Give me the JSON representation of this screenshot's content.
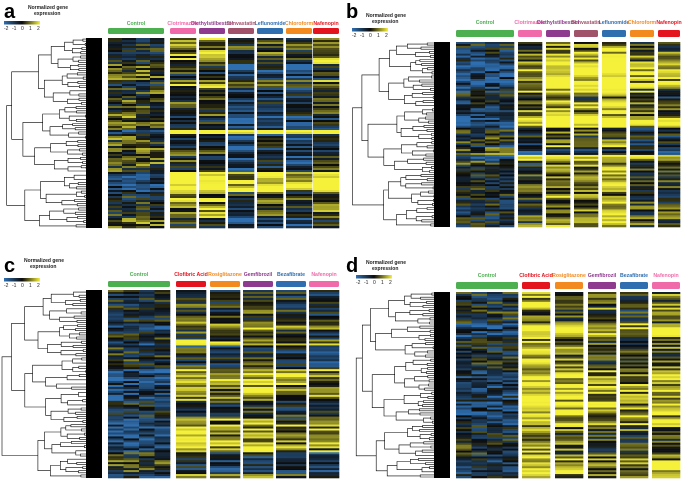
{
  "figure": {
    "panels": [
      {
        "letter": "a",
        "scale": {
          "title_line1": "Normalized gene",
          "title_line2": "expression",
          "ticks": [
            "-2",
            "-1",
            "0",
            "1",
            "2"
          ]
        },
        "groups": [
          {
            "label": "Control",
            "color": "#4caf50",
            "columns": 4
          },
          {
            "label": "Clotrimazole",
            "color": "#f06aa9",
            "columns": 1
          },
          {
            "label": "Diethylstilbestrol",
            "color": "#8e3a8e",
            "columns": 1
          },
          {
            "label": "Simvastatin",
            "color": "#a0526a",
            "columns": 1
          },
          {
            "label": "Leflunomide",
            "color": "#2f6fb0",
            "columns": 1
          },
          {
            "label": "Chloroform",
            "color": "#f28a1f",
            "columns": 1
          },
          {
            "label": "Nafenopin",
            "color": "#e3141e",
            "columns": 1
          }
        ]
      },
      {
        "letter": "b",
        "scale": {
          "title_line1": "Normalized gene",
          "title_line2": "expression",
          "ticks": [
            "-2",
            "-1",
            "0",
            "1",
            "2"
          ]
        },
        "groups": [
          {
            "label": "Control",
            "color": "#4caf50",
            "columns": 4
          },
          {
            "label": "Clotrimazole",
            "color": "#f06aa9",
            "columns": 1
          },
          {
            "label": "Diethylstilbestrol",
            "color": "#8e3a8e",
            "columns": 1
          },
          {
            "label": "Simvastatin",
            "color": "#a0526a",
            "columns": 1
          },
          {
            "label": "Leflunomide",
            "color": "#2f6fb0",
            "columns": 1
          },
          {
            "label": "Chloroform",
            "color": "#f28a1f",
            "columns": 1
          },
          {
            "label": "Nafenopin",
            "color": "#e3141e",
            "columns": 1
          }
        ]
      },
      {
        "letter": "c",
        "scale": {
          "title_line1": "Normalized gene",
          "title_line2": "expression",
          "ticks": [
            "-2",
            "-1",
            "0",
            "1",
            "2"
          ]
        },
        "groups": [
          {
            "label": "Control",
            "color": "#4caf50",
            "columns": 4
          },
          {
            "label": "Clofibric Acid",
            "color": "#e3141e",
            "columns": 1
          },
          {
            "label": "Rosiglitazone",
            "color": "#f28a1f",
            "columns": 1
          },
          {
            "label": "Gemfibrozil",
            "color": "#8e3a8e",
            "columns": 1
          },
          {
            "label": "Bezafibrate",
            "color": "#2f6fb0",
            "columns": 1
          },
          {
            "label": "Nafenopin",
            "color": "#f06aa9",
            "columns": 1
          }
        ]
      },
      {
        "letter": "d",
        "scale": {
          "title_line1": "Normalized gene",
          "title_line2": "expression",
          "ticks": [
            "-2",
            "-1",
            "0",
            "1",
            "2"
          ]
        },
        "groups": [
          {
            "label": "Control",
            "color": "#4caf50",
            "columns": 4
          },
          {
            "label": "Clofibric Acid",
            "color": "#e3141e",
            "columns": 1
          },
          {
            "label": "Rosiglitazone",
            "color": "#f28a1f",
            "columns": 1
          },
          {
            "label": "Gemfibrozil",
            "color": "#8e3a8e",
            "columns": 1
          },
          {
            "label": "Bezafibrate",
            "color": "#2f6fb0",
            "columns": 1
          },
          {
            "label": "Nafenopin",
            "color": "#f06aa9",
            "columns": 1
          }
        ]
      }
    ],
    "colors": {
      "low": "#2f6fb0",
      "mid": "#0b0b0b",
      "high": "#f5f03a"
    }
  }
}
